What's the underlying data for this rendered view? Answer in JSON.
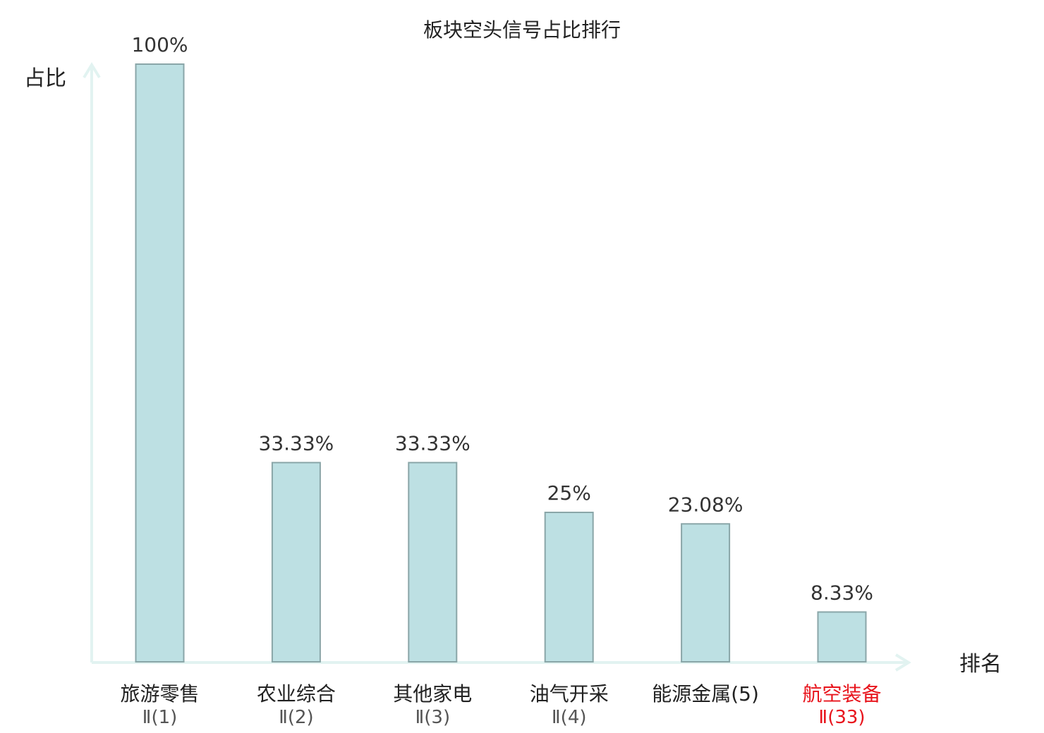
{
  "chart_data": {
    "type": "bar",
    "title": "板块空头信号占比排行",
    "ylabel": "占比",
    "xlabel": "排名",
    "ylim": [
      0,
      100
    ],
    "grid": false,
    "categories": [
      {
        "name": "旅游零售",
        "sub": "Ⅱ(1)",
        "highlight": false
      },
      {
        "name": "农业综合",
        "sub": "Ⅱ(2)",
        "highlight": false
      },
      {
        "name": "其他家电",
        "sub": "Ⅱ(3)",
        "highlight": false
      },
      {
        "name": "油气开采",
        "sub": "Ⅱ(4)",
        "highlight": false
      },
      {
        "name": "能源金属(5)",
        "sub": "",
        "highlight": false
      },
      {
        "name": "航空装备",
        "sub": "Ⅱ(33)",
        "highlight": true
      }
    ],
    "values": [
      100,
      33.33,
      33.33,
      25,
      23.08,
      8.33
    ],
    "value_labels": [
      "100%",
      "33.33%",
      "33.33%",
      "25%",
      "23.08%",
      "8.33%"
    ],
    "colors": {
      "bar": "#bde0e3",
      "bar_border": "#8aa6a8",
      "axis": "#e2f3f1",
      "highlight_text": "#e8141c"
    }
  }
}
